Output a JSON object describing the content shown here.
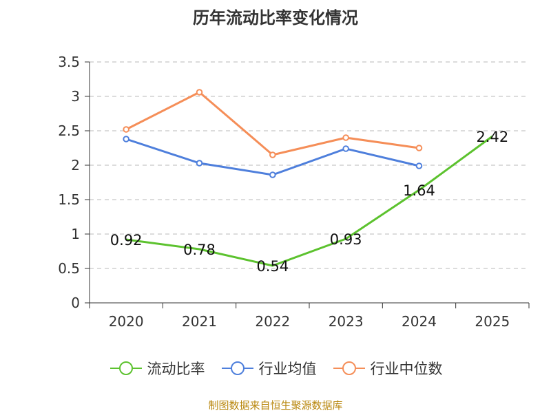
{
  "chart_data": {
    "type": "line",
    "title": "历年流动比率变化情况",
    "categories": [
      "2020",
      "2021",
      "2022",
      "2023",
      "2024",
      "2025"
    ],
    "ylim": [
      0,
      3.5
    ],
    "yticks": [
      0,
      0.5,
      1,
      1.5,
      2,
      2.5,
      3,
      3.5
    ],
    "ytick_labels": [
      "0",
      "0.5",
      "1",
      "1.5",
      "2",
      "2.5",
      "3",
      "3.5"
    ],
    "grid": true,
    "legend_position": "bottom",
    "series": [
      {
        "name": "流动比率",
        "color": "#5cc22e",
        "show_markers": false,
        "show_labels": true,
        "values": [
          0.92,
          0.78,
          0.54,
          0.93,
          1.64,
          2.42
        ],
        "labels": [
          "0.92",
          "0.78",
          "0.54",
          "0.93",
          "1.64",
          "2.42"
        ]
      },
      {
        "name": "行业均值",
        "color": "#4e7fdc",
        "show_markers": true,
        "show_labels": false,
        "values": [
          2.38,
          2.03,
          1.86,
          2.24,
          1.99,
          null
        ]
      },
      {
        "name": "行业中位数",
        "color": "#f58e58",
        "show_markers": true,
        "show_labels": false,
        "values": [
          2.52,
          3.06,
          2.15,
          2.4,
          2.25,
          null
        ]
      }
    ],
    "source": "制图数据来自恒生聚源数据库"
  }
}
